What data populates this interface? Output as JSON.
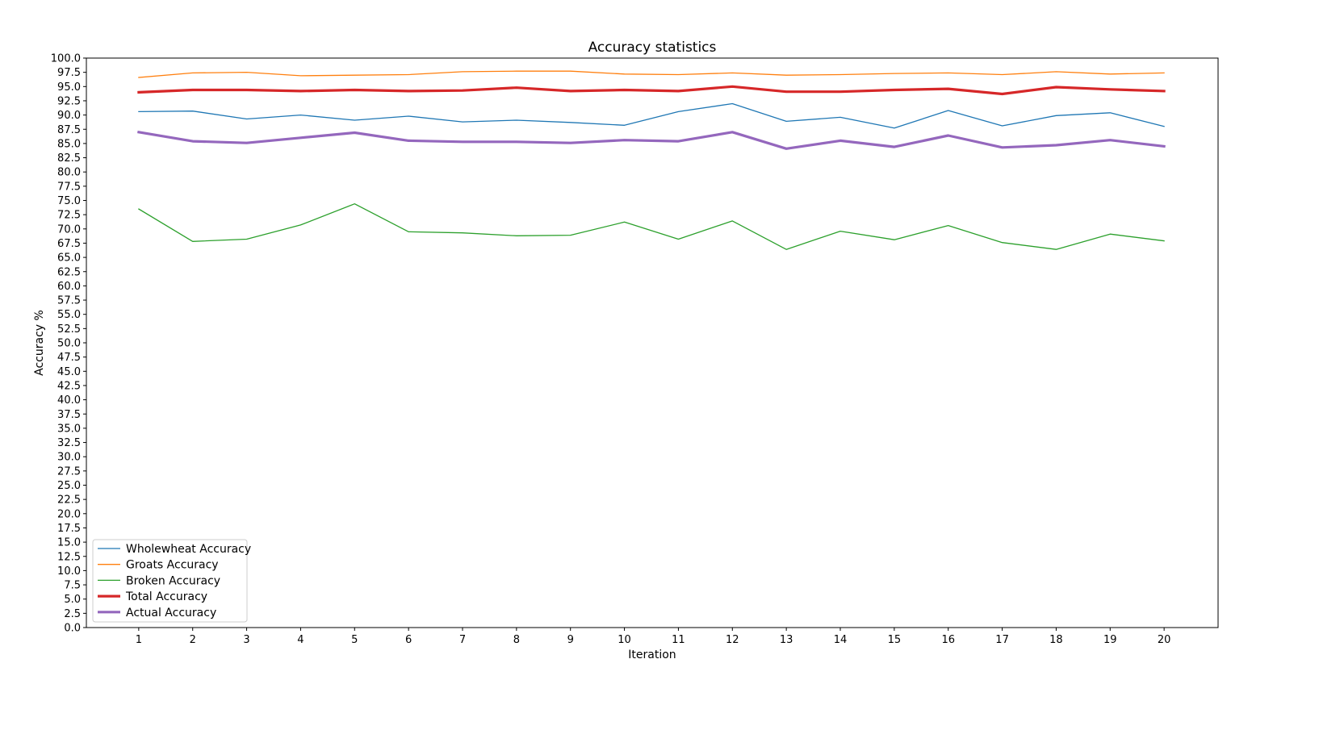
{
  "chart_data": {
    "type": "line",
    "title": "Accuracy statistics",
    "xlabel": "Iteration",
    "ylabel": "Accuracy %",
    "x": [
      1,
      2,
      3,
      4,
      5,
      6,
      7,
      8,
      9,
      10,
      11,
      12,
      13,
      14,
      15,
      16,
      17,
      18,
      19,
      20
    ],
    "xlim": [
      0.03,
      21.0
    ],
    "ylim": [
      0,
      100
    ],
    "y_ticks": [
      "0.0",
      "2.5",
      "5.0",
      "7.5",
      "10.0",
      "12.5",
      "15.0",
      "17.5",
      "20.0",
      "22.5",
      "25.0",
      "27.5",
      "30.0",
      "32.5",
      "35.0",
      "37.5",
      "40.0",
      "42.5",
      "45.0",
      "47.5",
      "50.0",
      "52.5",
      "55.0",
      "57.5",
      "60.0",
      "62.5",
      "65.0",
      "67.5",
      "70.0",
      "72.5",
      "75.0",
      "77.5",
      "80.0",
      "82.5",
      "85.0",
      "87.5",
      "90.0",
      "92.5",
      "95.0",
      "97.5",
      "100.0"
    ],
    "x_ticks": [
      "1",
      "2",
      "3",
      "4",
      "5",
      "6",
      "7",
      "8",
      "9",
      "10",
      "11",
      "12",
      "13",
      "14",
      "15",
      "16",
      "17",
      "18",
      "19",
      "20"
    ],
    "grid": false,
    "legend_position": "lower-left",
    "series": [
      {
        "name": "Wholewheat Accuracy",
        "color": "#1f77b4",
        "weight": "thin",
        "values": [
          90.6,
          90.7,
          89.3,
          90.0,
          89.1,
          89.8,
          88.8,
          89.1,
          88.7,
          88.2,
          90.6,
          92.0,
          88.9,
          89.6,
          87.7,
          90.8,
          88.1,
          89.9,
          90.4,
          88.0
        ]
      },
      {
        "name": "Groats Accuracy",
        "color": "#ff7f0e",
        "weight": "thin",
        "values": [
          96.6,
          97.4,
          97.5,
          96.9,
          97.0,
          97.1,
          97.6,
          97.7,
          97.7,
          97.2,
          97.1,
          97.4,
          97.0,
          97.1,
          97.3,
          97.4,
          97.1,
          97.6,
          97.2,
          97.4
        ]
      },
      {
        "name": "Broken Accuracy",
        "color": "#2ca02c",
        "weight": "thin",
        "values": [
          73.5,
          67.8,
          68.2,
          70.7,
          74.4,
          69.5,
          69.3,
          68.8,
          68.9,
          71.2,
          68.2,
          71.4,
          66.4,
          69.6,
          68.1,
          70.6,
          67.6,
          66.4,
          69.1,
          67.9
        ]
      },
      {
        "name": "Total Accuracy",
        "color": "#d62728",
        "weight": "thick",
        "values": [
          94.0,
          94.4,
          94.4,
          94.2,
          94.4,
          94.2,
          94.3,
          94.8,
          94.2,
          94.4,
          94.2,
          95.0,
          94.1,
          94.1,
          94.4,
          94.6,
          93.7,
          94.9,
          94.5,
          94.2
        ]
      },
      {
        "name": "Actual Accuracy",
        "color": "#9467bd",
        "weight": "thick",
        "values": [
          87.0,
          85.4,
          85.1,
          86.0,
          86.9,
          85.5,
          85.3,
          85.3,
          85.1,
          85.6,
          85.4,
          87.0,
          84.1,
          85.5,
          84.4,
          86.4,
          84.3,
          84.7,
          85.6,
          84.5
        ]
      }
    ]
  }
}
